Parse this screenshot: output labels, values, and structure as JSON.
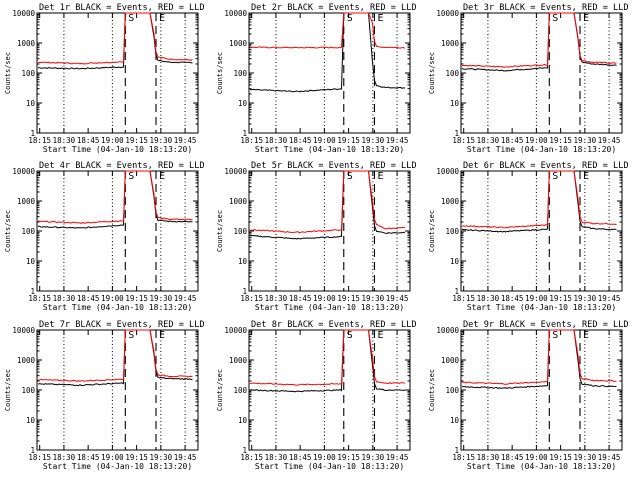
{
  "chart_data": [
    {
      "type": "line",
      "title": "Det 1r BLACK = Events, RED = LLD",
      "xlabel": "Start Time (04-Jan-10 18:13:20)",
      "ylabel": "Counts/sec",
      "yscale": "log",
      "ylim": [
        1,
        10000
      ],
      "x_ticks": [
        "18:15",
        "18:30",
        "18:45",
        "19:00",
        "19:15",
        "19:30",
        "19:45"
      ],
      "y_ticks": [
        "1",
        "10",
        "100",
        "1000",
        "10000"
      ],
      "markers": [
        {
          "label": "S",
          "position": "19:08"
        },
        {
          "label": "E",
          "position": "19:27"
        }
      ],
      "series": [
        {
          "color": "#000000",
          "pre": [
            150,
            140,
            160
          ],
          "post": [
            260,
            230,
            220
          ]
        },
        {
          "color": "#ff0000",
          "pre": [
            230,
            205,
            240
          ],
          "post": [
            340,
            290,
            270
          ]
        }
      ]
    },
    {
      "type": "line",
      "title": "Det 2r BLACK = Events, RED = LLD",
      "xlabel": "Start Time (04-Jan-10 18:13:20)",
      "ylabel": "Counts/sec",
      "yscale": "log",
      "ylim": [
        1,
        10000
      ],
      "x_ticks": [
        "18:15",
        "18:30",
        "18:45",
        "19:00",
        "19:15",
        "19:30",
        "19:45"
      ],
      "y_ticks": [
        "1",
        "10",
        "100",
        "1000",
        "10000"
      ],
      "markers": [
        {
          "label": "S",
          "position": "19:12"
        },
        {
          "label": "E",
          "position": "19:31"
        }
      ],
      "series": [
        {
          "color": "#000000",
          "pre": [
            28,
            24,
            30
          ],
          "post": [
            38,
            33,
            32
          ]
        },
        {
          "color": "#ff0000",
          "pre": [
            720,
            700,
            710
          ],
          "post": [
            760,
            720,
            700
          ]
        }
      ]
    },
    {
      "type": "line",
      "title": "Det 3r BLACK = Events, RED = LLD",
      "xlabel": "Start Time (04-Jan-10 18:13:20)",
      "ylabel": "Counts/sec",
      "yscale": "log",
      "ylim": [
        1,
        10000
      ],
      "x_ticks": [
        "18:15",
        "18:30",
        "18:45",
        "19:00",
        "19:15",
        "19:30",
        "19:45"
      ],
      "y_ticks": [
        "1",
        "10",
        "100",
        "1000",
        "10000"
      ],
      "markers": [
        {
          "label": "S",
          "position": "19:08"
        },
        {
          "label": "E",
          "position": "19:27"
        }
      ],
      "series": [
        {
          "color": "#000000",
          "pre": [
            140,
            120,
            150
          ],
          "post": [
            230,
            200,
            180
          ]
        },
        {
          "color": "#ff0000",
          "pre": [
            180,
            160,
            190
          ],
          "post": [
            260,
            230,
            210
          ]
        }
      ]
    },
    {
      "type": "line",
      "title": "Det 4r BLACK = Events, RED = LLD",
      "xlabel": "Start Time (04-Jan-10 18:13:20)",
      "ylabel": "Counts/sec",
      "yscale": "log",
      "ylim": [
        1,
        10000
      ],
      "x_ticks": [
        "18:15",
        "18:30",
        "18:45",
        "19:00",
        "19:15",
        "19:30",
        "19:45"
      ],
      "y_ticks": [
        "1",
        "10",
        "100",
        "1000",
        "10000"
      ],
      "markers": [
        {
          "label": "S",
          "position": "19:08"
        },
        {
          "label": "E",
          "position": "19:27"
        }
      ],
      "series": [
        {
          "color": "#000000",
          "pre": [
            140,
            125,
            160
          ],
          "post": [
            230,
            210,
            200
          ]
        },
        {
          "color": "#ff0000",
          "pre": [
            210,
            185,
            220
          ],
          "post": [
            280,
            250,
            240
          ]
        }
      ]
    },
    {
      "type": "line",
      "title": "Det 5r BLACK = Events, RED = LLD",
      "xlabel": "Start Time (04-Jan-10 18:13:20)",
      "ylabel": "Counts/sec",
      "yscale": "log",
      "ylim": [
        1,
        10000
      ],
      "x_ticks": [
        "18:15",
        "18:30",
        "18:45",
        "19:00",
        "19:15",
        "19:30",
        "19:45"
      ],
      "y_ticks": [
        "1",
        "10",
        "100",
        "1000",
        "10000"
      ],
      "markers": [
        {
          "label": "S",
          "position": "19:12"
        },
        {
          "label": "E",
          "position": "19:31"
        }
      ],
      "series": [
        {
          "color": "#000000",
          "pre": [
            70,
            55,
            65
          ],
          "post": [
            100,
            85,
            90
          ]
        },
        {
          "color": "#ff0000",
          "pre": [
            110,
            90,
            110
          ],
          "post": [
            160,
            120,
            130
          ]
        }
      ]
    },
    {
      "type": "line",
      "title": "Det 6r BLACK = Events, RED = LLD",
      "xlabel": "Start Time (04-Jan-10 18:13:20)",
      "ylabel": "Counts/sec",
      "yscale": "log",
      "ylim": [
        1,
        10000
      ],
      "x_ticks": [
        "18:15",
        "18:30",
        "18:45",
        "19:00",
        "19:15",
        "19:30",
        "19:45"
      ],
      "y_ticks": [
        "1",
        "10",
        "100",
        "1000",
        "10000"
      ],
      "markers": [
        {
          "label": "S",
          "position": "19:08"
        },
        {
          "label": "E",
          "position": "19:27"
        }
      ],
      "series": [
        {
          "color": "#000000",
          "pre": [
            110,
            95,
            115
          ],
          "post": [
            140,
            120,
            110
          ]
        },
        {
          "color": "#ff0000",
          "pre": [
            150,
            130,
            160
          ],
          "post": [
            200,
            180,
            170
          ]
        }
      ]
    },
    {
      "type": "line",
      "title": "Det 7r BLACK = Events, RED = LLD",
      "xlabel": "Start Time (04-Jan-10 18:13:20)",
      "ylabel": "Counts/sec",
      "yscale": "log",
      "ylim": [
        1,
        10000
      ],
      "x_ticks": [
        "18:15",
        "18:30",
        "18:45",
        "19:00",
        "19:15",
        "19:30",
        "19:45"
      ],
      "y_ticks": [
        "1",
        "10",
        "100",
        "1000",
        "10000"
      ],
      "markers": [
        {
          "label": "S",
          "position": "19:08"
        },
        {
          "label": "E",
          "position": "19:27"
        }
      ],
      "series": [
        {
          "color": "#000000",
          "pre": [
            160,
            145,
            170
          ],
          "post": [
            260,
            240,
            230
          ]
        },
        {
          "color": "#ff0000",
          "pre": [
            220,
            200,
            230
          ],
          "post": [
            320,
            290,
            280
          ]
        }
      ]
    },
    {
      "type": "line",
      "title": "Det 8r BLACK = Events, RED = LLD",
      "xlabel": "Start Time (04-Jan-10 18:13:20)",
      "ylabel": "Counts/sec",
      "yscale": "log",
      "ylim": [
        1,
        10000
      ],
      "x_ticks": [
        "18:15",
        "18:30",
        "18:45",
        "19:00",
        "19:15",
        "19:30",
        "19:45"
      ],
      "y_ticks": [
        "1",
        "10",
        "100",
        "1000",
        "10000"
      ],
      "markers": [
        {
          "label": "S",
          "position": "19:12"
        },
        {
          "label": "E",
          "position": "19:31"
        }
      ],
      "series": [
        {
          "color": "#000000",
          "pre": [
            100,
            90,
            100
          ],
          "post": [
            110,
            100,
            100
          ]
        },
        {
          "color": "#ff0000",
          "pre": [
            170,
            150,
            160
          ],
          "post": [
            190,
            170,
            170
          ]
        }
      ]
    },
    {
      "type": "line",
      "title": "Det 9r BLACK = Events, RED = LLD",
      "xlabel": "Start Time (04-Jan-10 18:13:20)",
      "ylabel": "Counts/sec",
      "yscale": "log",
      "ylim": [
        1,
        10000
      ],
      "x_ticks": [
        "18:15",
        "18:30",
        "18:45",
        "19:00",
        "19:15",
        "19:30",
        "19:45"
      ],
      "y_ticks": [
        "1",
        "10",
        "100",
        "1000",
        "10000"
      ],
      "markers": [
        {
          "label": "S",
          "position": "19:08"
        },
        {
          "label": "E",
          "position": "19:27"
        }
      ],
      "series": [
        {
          "color": "#000000",
          "pre": [
            130,
            115,
            140
          ],
          "post": [
            160,
            140,
            130
          ]
        },
        {
          "color": "#ff0000",
          "pre": [
            180,
            160,
            190
          ],
          "post": [
            240,
            210,
            200
          ]
        }
      ]
    }
  ]
}
